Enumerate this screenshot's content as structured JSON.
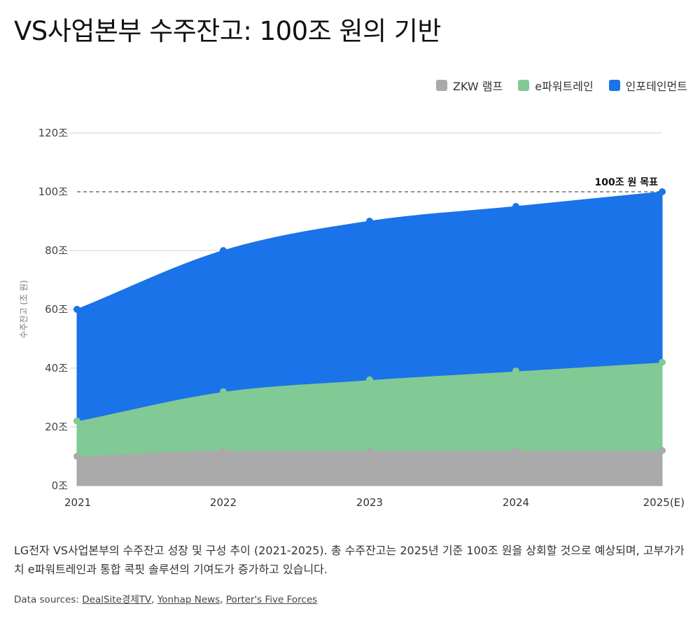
{
  "title": "VS사업본부 수주잔고: 100조 원의 기반",
  "legend": [
    {
      "label": "ZKW 램프",
      "color": "#aaaaaa"
    },
    {
      "label": "e파워트레인",
      "color": "#81c995"
    },
    {
      "label": "인포테인먼트",
      "color": "#1a73e8"
    }
  ],
  "chart_data": {
    "type": "area",
    "stacked": true,
    "x": [
      "2021",
      "2022",
      "2023",
      "2024",
      "2025(E)"
    ],
    "series": [
      {
        "name": "ZKW 램프",
        "color": "#aaaaaa",
        "values": [
          10,
          12,
          12,
          12,
          12
        ]
      },
      {
        "name": "e파워트레인",
        "color": "#81c995",
        "values": [
          12,
          20,
          24,
          27,
          30
        ]
      },
      {
        "name": "인포테인먼트",
        "color": "#1a73e8",
        "values": [
          38,
          48,
          54,
          56,
          58
        ]
      }
    ],
    "ylabel": "수주잔고 (조 원)",
    "ylim": [
      0,
      120
    ],
    "yticks": [
      0,
      20,
      40,
      60,
      80,
      100,
      120
    ],
    "ytick_suffix": "조",
    "grid": true,
    "reference_line": {
      "value": 100,
      "label": "100조 원 목표"
    }
  },
  "caption": "LG전자 VS사업본부의 수주잔고 성장 및 구성 추이 (2021-2025). 총 수주잔고는 2025년 기준 100조 원을 상회할 것으로 예상되며, 고부가가치 e파워트레인과 통합 콕핏 솔루션의 기여도가 증가하고 있습니다.",
  "sources": {
    "prefix": "Data sources:",
    "links": [
      "DealSite경제TV",
      "Yonhap News",
      "Porter's Five Forces"
    ]
  }
}
